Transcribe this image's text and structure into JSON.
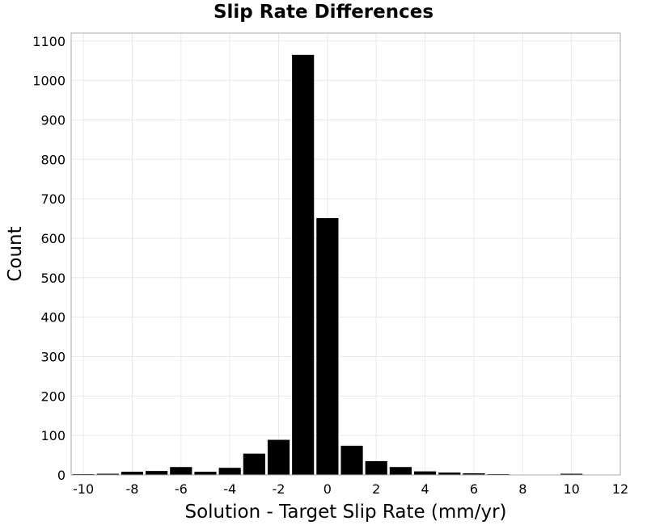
{
  "chart_data": {
    "type": "bar",
    "title": "Slip Rate Differences",
    "xlabel": "Solution - Target Slip Rate (mm/yr)",
    "ylabel": "Count",
    "bin_width": 1,
    "x": [
      -10,
      -9,
      -8,
      -7,
      -6,
      -5,
      -4,
      -3,
      -2,
      -1,
      0,
      1,
      2,
      3,
      4,
      5,
      6,
      7,
      8,
      9,
      10
    ],
    "values": [
      2,
      3,
      8,
      10,
      20,
      8,
      18,
      54,
      89,
      1065,
      651,
      74,
      35,
      20,
      9,
      6,
      4,
      2,
      1,
      1,
      3
    ],
    "xlim": [
      -10.5,
      12
    ],
    "ylim": [
      0,
      1120
    ],
    "xticks": [
      -10,
      -8,
      -6,
      -4,
      -2,
      0,
      2,
      4,
      6,
      8,
      10,
      12
    ],
    "yticks": [
      0,
      100,
      200,
      300,
      400,
      500,
      600,
      700,
      800,
      900,
      1000,
      1100
    ],
    "bar_color": "#000000",
    "grid": true,
    "legend": "none"
  }
}
